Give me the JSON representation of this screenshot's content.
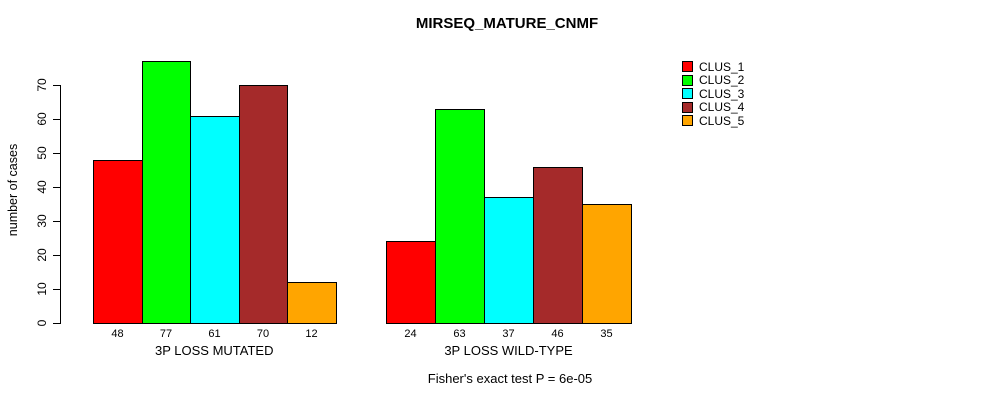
{
  "title": "MIRSEQ_MATURE_CNMF",
  "footer": "Fisher's exact test P = 6e-05",
  "colors": {
    "clus_1": "#FF0000",
    "clus_2": "#00FF00",
    "clus_3": "#00FFFF",
    "clus_4": "#A52A2A",
    "clus_5": "#FFA500",
    "axis": "#000000",
    "background": "#FFFFFF"
  },
  "chart_data": {
    "type": "bar",
    "title": "MIRSEQ_MATURE_CNMF",
    "xlabel": "",
    "ylabel": "number of cases",
    "yticks": [
      0,
      10,
      20,
      30,
      40,
      50,
      60,
      70
    ],
    "ylim": [
      0,
      77
    ],
    "grid": false,
    "legend_position": "right",
    "bar_value_labels_shown": true,
    "categories": [
      "3P LOSS MUTATED",
      "3P LOSS WILD-TYPE"
    ],
    "series": [
      {
        "name": "CLUS_1",
        "color": "#FF0000",
        "values": [
          48,
          24
        ]
      },
      {
        "name": "CLUS_2",
        "color": "#00FF00",
        "values": [
          77,
          63
        ]
      },
      {
        "name": "CLUS_3",
        "color": "#00FFFF",
        "values": [
          61,
          37
        ]
      },
      {
        "name": "CLUS_4",
        "color": "#A52A2A",
        "values": [
          70,
          46
        ]
      },
      {
        "name": "CLUS_5",
        "color": "#FFA500",
        "values": [
          12,
          35
        ]
      }
    ],
    "annotation": "Fisher's exact test P = 6e-05"
  }
}
